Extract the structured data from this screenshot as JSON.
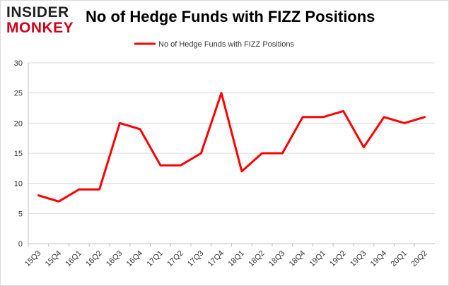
{
  "logo": {
    "line1": "INSIDER",
    "line2": "MONKEY"
  },
  "colors": {
    "series": "#ff0000",
    "grid": "#d9d9d9",
    "axis": "#bfbfbf"
  },
  "chart_data": {
    "type": "line",
    "title": "No of Hedge Funds with FIZZ Positions",
    "xlabel": "",
    "ylabel": "",
    "legend_position": "top-center",
    "grid": true,
    "ylim": [
      0,
      30
    ],
    "yticks": [
      0,
      5,
      10,
      15,
      20,
      25,
      30
    ],
    "categories": [
      "15Q3",
      "15Q4",
      "16Q1",
      "16Q2",
      "16Q3",
      "16Q4",
      "17Q1",
      "17Q2",
      "17Q3",
      "17Q4",
      "18Q1",
      "18Q2",
      "18Q3",
      "18Q4",
      "19Q1",
      "19Q2",
      "19Q3",
      "19Q4",
      "20Q1",
      "20Q2"
    ],
    "series": [
      {
        "name": "No of Hedge Funds with FIZZ Positions",
        "values": [
          8,
          7,
          9,
          9,
          20,
          19,
          13,
          13,
          15,
          25,
          12,
          15,
          15,
          21,
          21,
          22,
          16,
          21,
          20,
          21
        ]
      }
    ]
  }
}
